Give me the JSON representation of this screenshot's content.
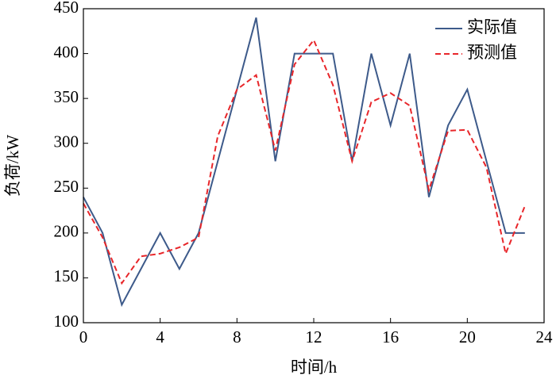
{
  "chart_data": {
    "type": "line",
    "x_label": "时间/h",
    "y_label": "负荷/kW",
    "x": [
      0,
      1,
      2,
      3,
      4,
      5,
      6,
      7,
      8,
      9,
      10,
      11,
      12,
      13,
      14,
      15,
      16,
      17,
      18,
      19,
      20,
      21,
      22,
      23
    ],
    "series": [
      {
        "name": "实际值",
        "color": "#3d5a8a",
        "dashed": false,
        "values": [
          240,
          200,
          120,
          160,
          200,
          160,
          200,
          280,
          360,
          440,
          280,
          400,
          400,
          400,
          280,
          400,
          320,
          400,
          240,
          320,
          360,
          280,
          200,
          200
        ]
      },
      {
        "name": "预测值",
        "color": "#e8262a",
        "dashed": true,
        "values": [
          233,
          195,
          144,
          174,
          177,
          184,
          195,
          308,
          360,
          376,
          292,
          388,
          415,
          365,
          280,
          346,
          356,
          342,
          248,
          314,
          315,
          273,
          177,
          230
        ]
      }
    ],
    "xlim": [
      0,
      24
    ],
    "xticks": [
      0,
      4,
      8,
      12,
      16,
      20,
      24
    ],
    "ylim": [
      100,
      450
    ],
    "yticks": [
      100,
      150,
      200,
      250,
      300,
      350,
      400,
      450
    ],
    "grid": false,
    "legend": "upper right"
  }
}
